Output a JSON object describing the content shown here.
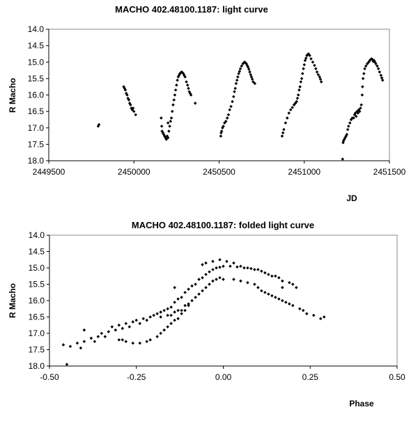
{
  "chart_data": [
    {
      "type": "scatter",
      "title": "MACHO 402.48100.1187: light curve",
      "xlabel": "JD",
      "ylabel": "R Macho",
      "xlim": [
        2449500,
        2451500
      ],
      "ylim": [
        18.0,
        14.0
      ],
      "y_inverted": true,
      "grid": false,
      "xticks": [
        "2449500",
        "2450000",
        "2450500",
        "2451000",
        "2451500"
      ],
      "yticks": [
        "14.0",
        "14.5",
        "15.0",
        "15.5",
        "16.0",
        "16.5",
        "17.0",
        "17.5",
        "18.0"
      ],
      "points": [
        [
          2449790,
          16.95
        ],
        [
          2449795,
          16.9
        ],
        [
          2449940,
          15.75
        ],
        [
          2449945,
          15.8
        ],
        [
          2449950,
          15.85
        ],
        [
          2449955,
          15.95
        ],
        [
          2449960,
          16.0
        ],
        [
          2449965,
          16.1
        ],
        [
          2449970,
          16.15
        ],
        [
          2449975,
          16.25
        ],
        [
          2449980,
          16.3
        ],
        [
          2449985,
          16.4
        ],
        [
          2449990,
          16.45
        ],
        [
          2449995,
          16.4
        ],
        [
          2450000,
          16.5
        ],
        [
          2450010,
          16.6
        ],
        [
          2450160,
          16.7
        ],
        [
          2450163,
          16.95
        ],
        [
          2450165,
          17.1
        ],
        [
          2450170,
          17.15
        ],
        [
          2450175,
          17.2
        ],
        [
          2450180,
          17.25
        ],
        [
          2450185,
          17.3
        ],
        [
          2450190,
          17.35
        ],
        [
          2450195,
          17.25
        ],
        [
          2450200,
          17.3
        ],
        [
          2450200,
          16.85
        ],
        [
          2450205,
          17.1
        ],
        [
          2450210,
          16.95
        ],
        [
          2450215,
          16.8
        ],
        [
          2450220,
          16.7
        ],
        [
          2450225,
          16.5
        ],
        [
          2450230,
          16.3
        ],
        [
          2450235,
          16.15
        ],
        [
          2450240,
          16.0
        ],
        [
          2450245,
          15.85
        ],
        [
          2450250,
          15.7
        ],
        [
          2450255,
          15.55
        ],
        [
          2450260,
          15.45
        ],
        [
          2450265,
          15.4
        ],
        [
          2450270,
          15.35
        ],
        [
          2450275,
          15.32
        ],
        [
          2450280,
          15.3
        ],
        [
          2450285,
          15.32
        ],
        [
          2450290,
          15.35
        ],
        [
          2450295,
          15.4
        ],
        [
          2450300,
          15.45
        ],
        [
          2450308,
          15.6
        ],
        [
          2450315,
          15.7
        ],
        [
          2450320,
          15.8
        ],
        [
          2450325,
          15.9
        ],
        [
          2450330,
          15.95
        ],
        [
          2450335,
          16.0
        ],
        [
          2450360,
          16.25
        ],
        [
          2450510,
          17.25
        ],
        [
          2450512,
          17.15
        ],
        [
          2450515,
          17.1
        ],
        [
          2450520,
          17.0
        ],
        [
          2450525,
          16.95
        ],
        [
          2450532,
          16.85
        ],
        [
          2450540,
          16.8
        ],
        [
          2450548,
          16.7
        ],
        [
          2450555,
          16.6
        ],
        [
          2450562,
          16.45
        ],
        [
          2450570,
          16.35
        ],
        [
          2450578,
          16.2
        ],
        [
          2450585,
          16.05
        ],
        [
          2450590,
          15.9
        ],
        [
          2450595,
          15.8
        ],
        [
          2450600,
          15.65
        ],
        [
          2450605,
          15.55
        ],
        [
          2450610,
          15.45
        ],
        [
          2450615,
          15.35
        ],
        [
          2450620,
          15.28
        ],
        [
          2450625,
          15.2
        ],
        [
          2450632,
          15.12
        ],
        [
          2450640,
          15.05
        ],
        [
          2450645,
          15.02
        ],
        [
          2450650,
          15.0
        ],
        [
          2450655,
          15.02
        ],
        [
          2450660,
          15.05
        ],
        [
          2450665,
          15.1
        ],
        [
          2450670,
          15.15
        ],
        [
          2450675,
          15.22
        ],
        [
          2450680,
          15.3
        ],
        [
          2450685,
          15.38
        ],
        [
          2450690,
          15.45
        ],
        [
          2450695,
          15.52
        ],
        [
          2450700,
          15.6
        ],
        [
          2450710,
          15.65
        ],
        [
          2450870,
          17.25
        ],
        [
          2450875,
          17.15
        ],
        [
          2450880,
          17.05
        ],
        [
          2450890,
          16.85
        ],
        [
          2450900,
          16.7
        ],
        [
          2450910,
          16.55
        ],
        [
          2450920,
          16.45
        ],
        [
          2450930,
          16.38
        ],
        [
          2450940,
          16.3
        ],
        [
          2450948,
          16.25
        ],
        [
          2450955,
          16.2
        ],
        [
          2450960,
          16.1
        ],
        [
          2450965,
          16.0
        ],
        [
          2450970,
          15.85
        ],
        [
          2450975,
          15.75
        ],
        [
          2450980,
          15.6
        ],
        [
          2450985,
          15.5
        ],
        [
          2450990,
          15.35
        ],
        [
          2450995,
          15.2
        ],
        [
          2451000,
          15.08
        ],
        [
          2451005,
          14.95
        ],
        [
          2451010,
          14.88
        ],
        [
          2451015,
          14.8
        ],
        [
          2451020,
          14.77
        ],
        [
          2451025,
          14.75
        ],
        [
          2451032,
          14.8
        ],
        [
          2451040,
          14.9
        ],
        [
          2451050,
          15.0
        ],
        [
          2451060,
          15.1
        ],
        [
          2451068,
          15.2
        ],
        [
          2451075,
          15.3
        ],
        [
          2451082,
          15.38
        ],
        [
          2451090,
          15.45
        ],
        [
          2451095,
          15.52
        ],
        [
          2451100,
          15.6
        ],
        [
          2451225,
          17.95
        ],
        [
          2451228,
          17.45
        ],
        [
          2451230,
          17.4
        ],
        [
          2451235,
          17.35
        ],
        [
          2451240,
          17.3
        ],
        [
          2451245,
          17.25
        ],
        [
          2451250,
          17.2
        ],
        [
          2451255,
          17.05
        ],
        [
          2451260,
          16.95
        ],
        [
          2451268,
          16.85
        ],
        [
          2451275,
          16.75
        ],
        [
          2451282,
          16.7
        ],
        [
          2451290,
          16.7
        ],
        [
          2451295,
          16.6
        ],
        [
          2451300,
          16.55
        ],
        [
          2451305,
          16.65
        ],
        [
          2451310,
          16.5
        ],
        [
          2451315,
          16.55
        ],
        [
          2451320,
          16.45
        ],
        [
          2451325,
          16.5
        ],
        [
          2451330,
          16.4
        ],
        [
          2451335,
          16.3
        ],
        [
          2451340,
          16.0
        ],
        [
          2451342,
          15.75
        ],
        [
          2451345,
          15.5
        ],
        [
          2451350,
          15.35
        ],
        [
          2451355,
          15.2
        ],
        [
          2451362,
          15.12
        ],
        [
          2451370,
          15.05
        ],
        [
          2451378,
          15.0
        ],
        [
          2451385,
          14.95
        ],
        [
          2451390,
          14.92
        ],
        [
          2451395,
          14.9
        ],
        [
          2451400,
          14.92
        ],
        [
          2451405,
          14.98
        ],
        [
          2451410,
          14.95
        ],
        [
          2451415,
          15.0
        ],
        [
          2451420,
          15.05
        ],
        [
          2451428,
          15.12
        ],
        [
          2451435,
          15.2
        ],
        [
          2451442,
          15.3
        ],
        [
          2451450,
          15.4
        ],
        [
          2451455,
          15.48
        ],
        [
          2451460,
          15.55
        ]
      ]
    },
    {
      "type": "scatter",
      "title": "MACHO 402.48100.1187: folded light curve",
      "xlabel": "Phase",
      "ylabel": "R Macho",
      "xlim": [
        -0.5,
        0.5
      ],
      "ylim": [
        18.0,
        14.0
      ],
      "y_inverted": true,
      "grid": false,
      "xticks": [
        "-0.50",
        "-0.25",
        "0.00",
        "0.25",
        "0.50"
      ],
      "yticks": [
        "14.0",
        "14.5",
        "15.0",
        "15.5",
        "16.0",
        "16.5",
        "17.0",
        "17.5",
        "18.0"
      ],
      "points": [
        [
          -0.46,
          17.35
        ],
        [
          -0.45,
          17.95
        ],
        [
          -0.44,
          17.4
        ],
        [
          -0.42,
          17.3
        ],
        [
          -0.41,
          17.45
        ],
        [
          -0.4,
          17.25
        ],
        [
          -0.4,
          16.9
        ],
        [
          -0.38,
          17.15
        ],
        [
          -0.37,
          17.25
        ],
        [
          -0.36,
          17.1
        ],
        [
          -0.35,
          17.0
        ],
        [
          -0.34,
          17.1
        ],
        [
          -0.33,
          16.95
        ],
        [
          -0.32,
          16.8
        ],
        [
          -0.31,
          16.9
        ],
        [
          -0.3,
          16.75
        ],
        [
          -0.29,
          16.85
        ],
        [
          -0.28,
          16.7
        ],
        [
          -0.27,
          16.8
        ],
        [
          -0.26,
          16.65
        ],
        [
          -0.25,
          16.6
        ],
        [
          -0.24,
          16.7
        ],
        [
          -0.23,
          16.55
        ],
        [
          -0.22,
          16.6
        ],
        [
          -0.21,
          16.5
        ],
        [
          -0.2,
          16.45
        ],
        [
          -0.19,
          16.4
        ],
        [
          -0.18,
          16.35
        ],
        [
          -0.17,
          16.3
        ],
        [
          -0.16,
          16.25
        ],
        [
          -0.15,
          16.2
        ],
        [
          -0.14,
          16.05
        ],
        [
          -0.13,
          15.95
        ],
        [
          -0.12,
          15.9
        ],
        [
          -0.11,
          15.75
        ],
        [
          -0.1,
          15.65
        ],
        [
          -0.09,
          15.55
        ],
        [
          -0.08,
          15.5
        ],
        [
          -0.07,
          15.35
        ],
        [
          -0.06,
          15.3
        ],
        [
          -0.05,
          15.2
        ],
        [
          -0.04,
          15.12
        ],
        [
          -0.03,
          15.05
        ],
        [
          -0.02,
          15.0
        ],
        [
          -0.01,
          14.98
        ],
        [
          0.0,
          14.95
        ],
        [
          0.02,
          14.95
        ],
        [
          0.04,
          14.97
        ],
        [
          0.05,
          14.95
        ],
        [
          0.06,
          15.0
        ],
        [
          0.07,
          15.0
        ],
        [
          0.08,
          15.02
        ],
        [
          0.09,
          15.05
        ],
        [
          0.1,
          15.05
        ],
        [
          0.11,
          15.1
        ],
        [
          0.12,
          15.15
        ],
        [
          0.13,
          15.2
        ],
        [
          0.14,
          15.25
        ],
        [
          0.15,
          15.25
        ],
        [
          0.16,
          15.3
        ],
        [
          0.17,
          15.4
        ],
        [
          0.19,
          15.45
        ],
        [
          0.2,
          15.5
        ],
        [
          -0.18,
          16.5
        ],
        [
          -0.16,
          16.45
        ],
        [
          -0.15,
          16.45
        ],
        [
          -0.14,
          16.35
        ],
        [
          -0.13,
          16.3
        ],
        [
          -0.12,
          16.3
        ],
        [
          -0.11,
          16.15
        ],
        [
          -0.1,
          16.1
        ],
        [
          -0.09,
          16.0
        ],
        [
          -0.08,
          15.9
        ],
        [
          -0.07,
          15.8
        ],
        [
          -0.06,
          15.7
        ],
        [
          -0.05,
          15.6
        ],
        [
          -0.04,
          15.5
        ],
        [
          -0.03,
          15.4
        ],
        [
          -0.02,
          15.35
        ],
        [
          -0.01,
          15.3
        ],
        [
          0.0,
          15.35
        ],
        [
          0.03,
          15.35
        ],
        [
          0.05,
          15.4
        ],
        [
          0.07,
          15.45
        ],
        [
          0.09,
          15.5
        ],
        [
          0.1,
          15.6
        ],
        [
          0.11,
          15.7
        ],
        [
          0.12,
          15.75
        ],
        [
          0.13,
          15.8
        ],
        [
          0.14,
          15.85
        ],
        [
          0.15,
          15.9
        ],
        [
          0.16,
          15.95
        ],
        [
          0.17,
          16.0
        ],
        [
          0.18,
          16.05
        ],
        [
          0.19,
          16.1
        ],
        [
          0.2,
          16.15
        ],
        [
          0.22,
          16.25
        ],
        [
          0.23,
          16.3
        ],
        [
          0.24,
          16.4
        ],
        [
          0.26,
          16.45
        ],
        [
          0.28,
          16.55
        ],
        [
          0.29,
          16.5
        ],
        [
          -0.3,
          17.2
        ],
        [
          -0.29,
          17.2
        ],
        [
          -0.28,
          17.25
        ],
        [
          -0.26,
          17.3
        ],
        [
          -0.24,
          17.3
        ],
        [
          -0.22,
          17.25
        ],
        [
          -0.21,
          17.2
        ],
        [
          -0.19,
          17.1
        ],
        [
          -0.18,
          17.0
        ],
        [
          -0.17,
          16.9
        ],
        [
          -0.16,
          16.8
        ],
        [
          -0.15,
          16.7
        ],
        [
          -0.14,
          16.6
        ],
        [
          -0.13,
          16.55
        ],
        [
          -0.12,
          16.4
        ],
        [
          -0.11,
          16.3
        ],
        [
          -0.1,
          16.15
        ],
        [
          -0.06,
          14.9
        ],
        [
          -0.05,
          14.85
        ],
        [
          -0.03,
          14.8
        ],
        [
          -0.01,
          14.75
        ],
        [
          0.01,
          14.8
        ],
        [
          0.03,
          14.85
        ],
        [
          -0.14,
          15.6
        ],
        [
          0.21,
          15.6
        ],
        [
          0.17,
          15.6
        ]
      ]
    }
  ]
}
